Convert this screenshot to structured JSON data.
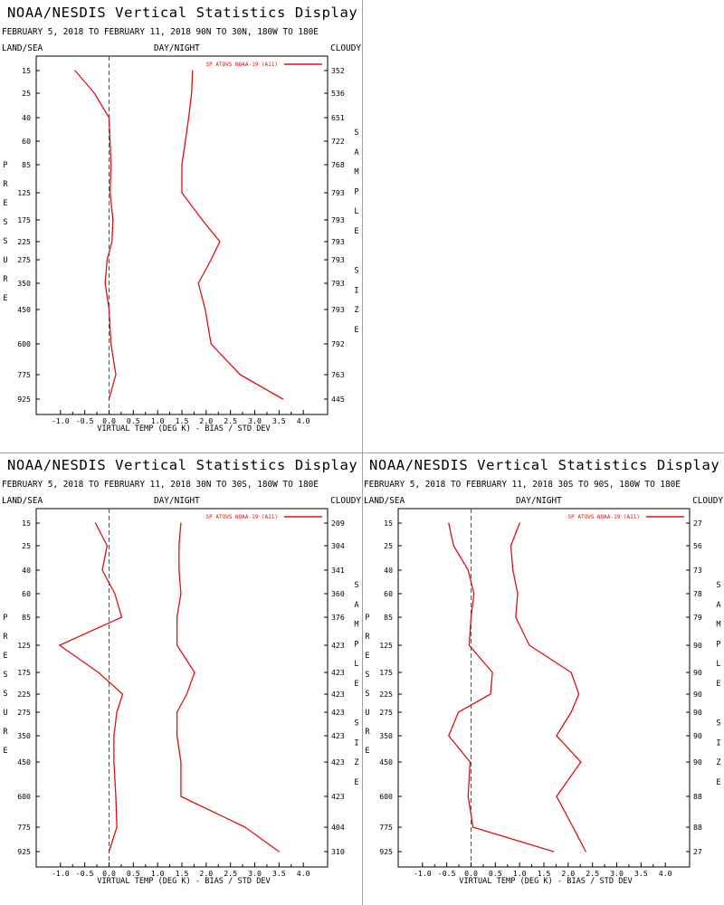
{
  "colors": {
    "series": "#e01010",
    "axis": "#000000",
    "zero_line": "#555555"
  },
  "chart_data": [
    {
      "type": "line",
      "title": "NOAA/NESDIS Vertical Statistics Display",
      "subtitle": "FEBRUARY 5, 2018 TO FEBRUARY 11, 2018 90N TO 30N, 180W TO 180E",
      "header_left": "LAND/SEA",
      "header_center": "DAY/NIGHT",
      "header_right": "CLOUDY",
      "ylabel": "PRESSURE",
      "ylabel_right": "SAMPLE SIZE",
      "xlabel": "VIRTUAL TEMP (DEG K) - BIAS / STD DEV",
      "legend": "SP ATOVS NOAA-19 (A11)",
      "legend_position": "top-right",
      "xlim": [
        -1.5,
        4.5
      ],
      "x_ticks": [
        "-1.0",
        "-0.5",
        "0.0",
        "0.5",
        "1.0",
        "1.5",
        "2.0",
        "2.5",
        "3.0",
        "3.5",
        "4.0"
      ],
      "pressure_levels": [
        "15",
        "25",
        "40",
        "60",
        "85",
        "125",
        "175",
        "225",
        "275",
        "350",
        "450",
        "600",
        "775",
        "925"
      ],
      "sample_size": [
        "352",
        "536",
        "651",
        "722",
        "768",
        "793",
        "793",
        "793",
        "793",
        "793",
        "793",
        "792",
        "763",
        "445"
      ],
      "series": [
        {
          "values": [
            -0.7,
            -0.3,
            0.0,
            0.02,
            0.04,
            0.02,
            0.08,
            0.06,
            -0.04,
            -0.08,
            0.0,
            0.04,
            0.14,
            0.0
          ]
        },
        {
          "values": [
            1.72,
            1.7,
            1.64,
            1.57,
            1.5,
            1.5,
            1.92,
            2.28,
            2.1,
            1.84,
            1.98,
            2.1,
            2.7,
            3.58
          ]
        }
      ]
    },
    {
      "type": "line",
      "title": "NOAA/NESDIS Vertical Statistics Display",
      "subtitle": "FEBRUARY 5, 2018 TO FEBRUARY 11, 2018 30N TO 30S, 180W TO 180E",
      "header_left": "LAND/SEA",
      "header_center": "DAY/NIGHT",
      "header_right": "CLOUDY",
      "ylabel": "PRESSURE",
      "ylabel_right": "SAMPLE SIZE",
      "xlabel": "VIRTUAL TEMP (DEG K) - BIAS / STD DEV",
      "legend": "SP ATOVS NOAA-19 (A11)",
      "legend_position": "top-right",
      "xlim": [
        -1.5,
        4.5
      ],
      "x_ticks": [
        "-1.0",
        "-0.5",
        "0.0",
        "0.5",
        "1.0",
        "1.5",
        "2.0",
        "2.5",
        "3.0",
        "3.5",
        "4.0"
      ],
      "pressure_levels": [
        "15",
        "25",
        "40",
        "60",
        "85",
        "125",
        "175",
        "225",
        "275",
        "350",
        "450",
        "600",
        "775",
        "925"
      ],
      "sample_size": [
        "209",
        "304",
        "341",
        "360",
        "376",
        "423",
        "423",
        "423",
        "423",
        "423",
        "423",
        "423",
        "404",
        "310"
      ],
      "series": [
        {
          "values": [
            -0.28,
            -0.04,
            -0.14,
            0.12,
            0.26,
            -1.02,
            -0.22,
            0.28,
            0.16,
            0.1,
            0.1,
            0.14,
            0.16,
            0.0
          ]
        },
        {
          "values": [
            1.48,
            1.44,
            1.44,
            1.48,
            1.4,
            1.4,
            1.76,
            1.6,
            1.4,
            1.4,
            1.48,
            1.48,
            2.8,
            3.5
          ]
        }
      ]
    },
    {
      "type": "line",
      "title": "NOAA/NESDIS Vertical Statistics Display",
      "subtitle": "FEBRUARY 5, 2018 TO FEBRUARY 11, 2018 30S TO 90S, 180W TO 180E",
      "header_left": "LAND/SEA",
      "header_center": "DAY/NIGHT",
      "header_right": "CLOUDY",
      "ylabel": "PRESSURE",
      "ylabel_right": "SAMPLE SIZE",
      "xlabel": "VIRTUAL TEMP (DEG K) - BIAS / STD DEV",
      "legend": "SP ATOVS NOAA-19 (A11)",
      "legend_position": "top-right",
      "xlim": [
        -1.5,
        4.5
      ],
      "x_ticks": [
        "-1.0",
        "-0.5",
        "0.0",
        "0.5",
        "1.0",
        "1.5",
        "2.0",
        "2.5",
        "3.0",
        "3.5",
        "4.0"
      ],
      "pressure_levels": [
        "15",
        "25",
        "40",
        "60",
        "85",
        "125",
        "175",
        "225",
        "275",
        "350",
        "450",
        "600",
        "775",
        "925"
      ],
      "sample_size": [
        "27",
        "56",
        "73",
        "78",
        "79",
        "90",
        "90",
        "90",
        "90",
        "90",
        "90",
        "88",
        "88",
        "27"
      ],
      "series": [
        {
          "values": [
            -0.46,
            -0.36,
            -0.06,
            0.06,
            0.0,
            -0.04,
            0.44,
            0.4,
            -0.26,
            -0.46,
            -0.02,
            -0.06,
            0.04,
            1.7
          ]
        },
        {
          "values": [
            1.0,
            0.82,
            0.86,
            0.96,
            0.92,
            1.2,
            2.06,
            2.22,
            2.06,
            1.76,
            2.26,
            1.76,
            2.1,
            2.36
          ]
        }
      ]
    }
  ]
}
